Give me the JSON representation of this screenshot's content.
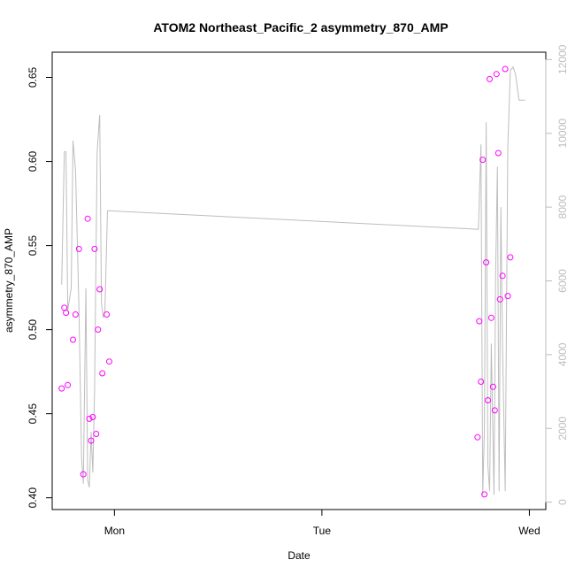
{
  "chart_data": {
    "type": "scatter",
    "title": "ATOM2 Northeast_Pacific_2 asymmetry_870_AMP",
    "xlabel": "Date",
    "ylabel": "asymmetry_870_AMP",
    "x_ticks": [
      {
        "label": "Mon",
        "value": 0
      },
      {
        "label": "Tue",
        "value": 24
      },
      {
        "label": "Wed",
        "value": 48
      }
    ],
    "xlim": [
      -7.2,
      49.9
    ],
    "ylim": [
      0.393,
      0.665
    ],
    "y_ticks": [
      0.4,
      0.45,
      0.5,
      0.55,
      0.6,
      0.65
    ],
    "y_right_lim": [
      -200,
      12200
    ],
    "y_right_ticks": [
      0,
      2000,
      4000,
      6000,
      8000,
      10000,
      12000
    ],
    "grid": false,
    "colors": {
      "points": "#ff00ff",
      "line": "#bdbdbd",
      "frame": "#000000",
      "right_axis": "#bdbdbd"
    },
    "series": [
      {
        "role": "points",
        "x": [
          -6.1,
          -5.8,
          -5.6,
          -5.4,
          -4.8,
          -4.5,
          -4.1,
          -3.6,
          -3.1,
          -2.9,
          -2.7,
          -2.5,
          -2.3,
          -2.1,
          -1.9,
          -1.7,
          -1.4,
          -0.9,
          -0.6,
          42.0,
          42.2,
          42.4,
          42.6,
          42.8,
          43.0,
          43.2,
          43.4,
          43.6,
          43.8,
          44.0,
          44.2,
          44.4,
          44.6,
          44.9,
          45.2,
          45.5,
          45.8
        ],
        "y": [
          0.465,
          0.513,
          0.51,
          0.467,
          0.494,
          0.509,
          0.548,
          0.414,
          0.566,
          0.447,
          0.434,
          0.448,
          0.548,
          0.438,
          0.5,
          0.524,
          0.474,
          0.509,
          0.481,
          0.436,
          0.505,
          0.469,
          0.601,
          0.402,
          0.54,
          0.458,
          0.649,
          0.507,
          0.466,
          0.452,
          0.652,
          0.605,
          0.518,
          0.532,
          0.655,
          0.52,
          0.543
        ]
      },
      {
        "role": "line",
        "x": [
          -6.1,
          -5.8,
          -5.6,
          -5.4,
          -5.2,
          -5.0,
          -4.8,
          -4.5,
          -4.1,
          -3.8,
          -3.6,
          -3.3,
          -3.1,
          -2.9,
          -2.7,
          -2.5,
          -2.3,
          -2.0,
          -1.7,
          -1.5,
          -1.3,
          -1.1,
          -0.8,
          -0.6,
          41.9,
          42.1,
          42.4,
          42.6,
          42.8,
          43.0,
          43.2,
          43.4,
          43.6,
          43.9,
          44.1,
          44.3,
          44.5,
          44.7,
          44.9,
          45.2,
          45.5,
          45.8,
          46.1,
          46.4,
          46.8,
          47.2,
          47.5
        ],
        "y": [
          5900,
          9500,
          9500,
          5200,
          5500,
          5800,
          9800,
          9000,
          5200,
          1200,
          500,
          5800,
          600,
          400,
          1900,
          800,
          3000,
          9500,
          10500,
          5400,
          5000,
          5200,
          7900,
          7900,
          7400,
          7400,
          9700,
          200,
          2000,
          10300,
          1000,
          300,
          4300,
          200,
          6200,
          9100,
          300,
          8000,
          4200,
          300,
          9600,
          11700,
          11800,
          11600,
          10900,
          10900,
          10900
        ]
      }
    ]
  }
}
